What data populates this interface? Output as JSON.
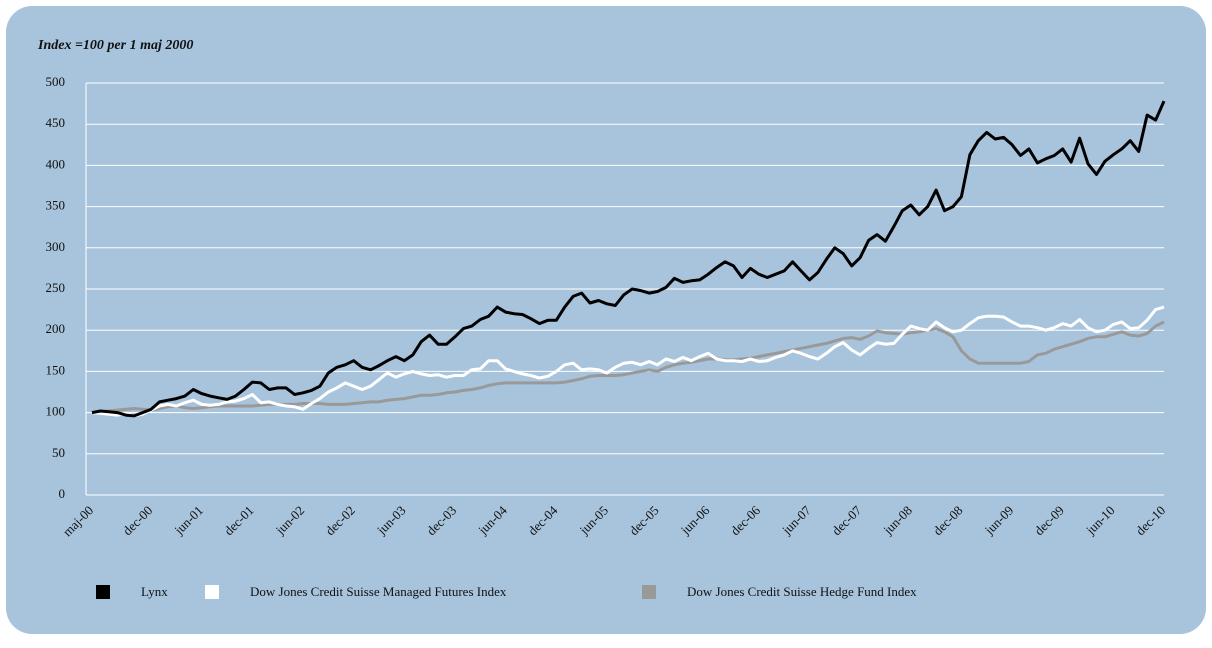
{
  "chart_data": {
    "type": "line",
    "title": "Index =100 per 1 maj 2000",
    "categories": [
      "maj-00",
      null,
      null,
      null,
      null,
      null,
      null,
      "dec-00",
      null,
      null,
      null,
      null,
      null,
      "jun-01",
      null,
      null,
      null,
      null,
      null,
      "dec-01",
      null,
      null,
      null,
      null,
      null,
      "jun-02",
      null,
      null,
      null,
      null,
      null,
      "dec-02",
      null,
      null,
      null,
      null,
      null,
      "jun-03",
      null,
      null,
      null,
      null,
      null,
      "dec-03",
      null,
      null,
      null,
      null,
      null,
      "jun-04",
      null,
      null,
      null,
      null,
      null,
      "dec-04",
      null,
      null,
      null,
      null,
      null,
      "jun-05",
      null,
      null,
      null,
      null,
      null,
      "dec-05",
      null,
      null,
      null,
      null,
      null,
      "jun-06",
      null,
      null,
      null,
      null,
      null,
      "dec-06",
      null,
      null,
      null,
      null,
      null,
      "jun-07",
      null,
      null,
      null,
      null,
      null,
      "dec-07",
      null,
      null,
      null,
      null,
      null,
      "jun-08",
      null,
      null,
      null,
      null,
      null,
      "dec-08",
      null,
      null,
      null,
      null,
      null,
      "jun-09",
      null,
      null,
      null,
      null,
      null,
      "dec-09",
      null,
      null,
      null,
      null,
      null,
      "jun-10",
      null,
      null,
      null,
      null,
      null,
      "dec-10"
    ],
    "series": [
      {
        "name": "Lynx",
        "color": "#000000",
        "values": [
          100,
          102,
          101,
          100,
          97,
          96,
          100,
          104,
          113,
          115,
          117,
          120,
          128,
          123,
          120,
          118,
          116,
          120,
          128,
          137,
          136,
          128,
          130,
          130,
          122,
          124,
          127,
          132,
          148,
          155,
          158,
          163,
          155,
          152,
          157,
          163,
          168,
          163,
          170,
          186,
          194,
          183,
          183,
          192,
          202,
          205,
          213,
          217,
          228,
          222,
          220,
          219,
          214,
          208,
          212,
          212,
          228,
          241,
          245,
          233,
          236,
          232,
          230,
          243,
          250,
          248,
          245,
          247,
          252,
          263,
          258,
          260,
          261,
          268,
          276,
          283,
          278,
          264,
          275,
          268,
          264,
          268,
          272,
          283,
          272,
          261,
          270,
          286,
          300,
          293,
          278,
          288,
          309,
          316,
          308,
          326,
          345,
          352,
          340,
          350,
          370,
          345,
          350,
          362,
          413,
          430,
          440,
          432,
          434,
          425,
          412,
          420,
          403,
          408,
          412,
          420,
          404,
          433,
          402,
          389,
          405,
          413,
          420,
          430,
          417,
          461,
          455,
          478
        ]
      },
      {
        "name": "Dow Jones Credit Suisse Managed Futures Index",
        "color": "#ffffff",
        "values": [
          100,
          99,
          98,
          97,
          99,
          96,
          98,
          103,
          108,
          110,
          108,
          112,
          115,
          110,
          109,
          110,
          113,
          114,
          117,
          122,
          112,
          113,
          110,
          108,
          107,
          104,
          111,
          117,
          125,
          130,
          136,
          132,
          128,
          132,
          140,
          148,
          143,
          147,
          150,
          147,
          145,
          146,
          143,
          145,
          145,
          152,
          153,
          163,
          163,
          153,
          150,
          147,
          145,
          142,
          144,
          150,
          158,
          160,
          152,
          153,
          152,
          148,
          155,
          160,
          161,
          158,
          162,
          158,
          165,
          162,
          167,
          163,
          168,
          172,
          165,
          163,
          163,
          162,
          165,
          162,
          163,
          167,
          170,
          175,
          172,
          168,
          165,
          172,
          180,
          185,
          176,
          170,
          178,
          185,
          183,
          184,
          195,
          205,
          202,
          200,
          210,
          203,
          198,
          200,
          208,
          215,
          217,
          217,
          216,
          210,
          205,
          205,
          203,
          200,
          203,
          208,
          205,
          213,
          203,
          198,
          200,
          207,
          210,
          202,
          203,
          212,
          225,
          228
        ]
      },
      {
        "name": "Dow Jones Credit Suisse Hedge Fund Index",
        "color": "#999999",
        "values": [
          100,
          101,
          102,
          103,
          104,
          105,
          104,
          103,
          105,
          107,
          108,
          106,
          105,
          106,
          107,
          108,
          108,
          108,
          108,
          108,
          109,
          110,
          110,
          110,
          110,
          111,
          111,
          111,
          110,
          110,
          110,
          111,
          112,
          113,
          113,
          115,
          116,
          117,
          119,
          121,
          121,
          122,
          124,
          125,
          127,
          128,
          130,
          133,
          135,
          136,
          136,
          136,
          136,
          136,
          136,
          136,
          137,
          139,
          141,
          144,
          145,
          145,
          145,
          146,
          148,
          150,
          152,
          150,
          155,
          158,
          160,
          161,
          163,
          165,
          165,
          164,
          164,
          165,
          166,
          168,
          170,
          172,
          174,
          176,
          178,
          180,
          182,
          184,
          187,
          190,
          191,
          189,
          193,
          199,
          197,
          196,
          195,
          197,
          198,
          200,
          202,
          198,
          192,
          175,
          165,
          160,
          160,
          160,
          160,
          160,
          160,
          162,
          170,
          172,
          177,
          180,
          183,
          186,
          190,
          192,
          192,
          195,
          198,
          194,
          193,
          196,
          205,
          210
        ]
      }
    ],
    "ylim": [
      0,
      500
    ],
    "yticks": [
      0,
      50,
      100,
      150,
      200,
      250,
      300,
      350,
      400,
      450,
      500
    ],
    "grid": true,
    "legend": "bottom"
  }
}
